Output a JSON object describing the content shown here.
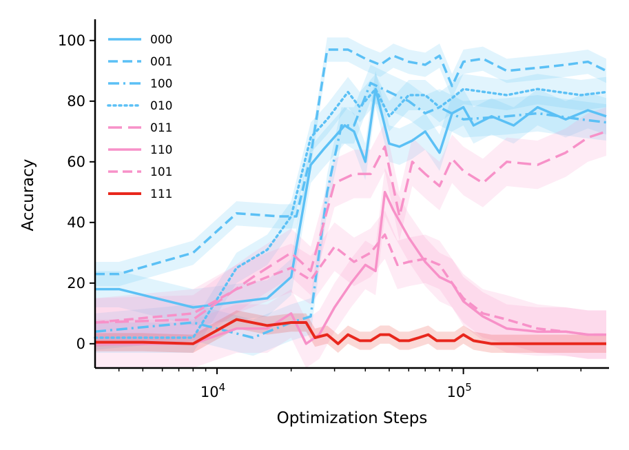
{
  "chart_data": {
    "type": "line",
    "xlabel": "Optimization Steps",
    "ylabel": "Accuracy",
    "x_scale": "log",
    "xlim": [
      3200,
      390000
    ],
    "ylim": [
      -8,
      107
    ],
    "x_ticks": [
      {
        "value": 10000,
        "base": "10",
        "exp": "4"
      },
      {
        "value": 100000,
        "base": "10",
        "exp": "5"
      }
    ],
    "y_ticks": [
      0,
      20,
      40,
      60,
      80,
      100
    ],
    "grid": false,
    "legend_position": "top-left",
    "colors": {
      "blue": "#5bc0f5",
      "pink": "#f791c8",
      "red": "#e8271c"
    },
    "series": [
      {
        "name": "000",
        "color": "#5bc0f5",
        "dash": "solid",
        "x": [
          3200,
          4000,
          8000,
          16000,
          20000,
          24000,
          27000,
          33000,
          36000,
          40000,
          44000,
          50000,
          55000,
          62000,
          70000,
          80000,
          90000,
          100000,
          110000,
          130000,
          160000,
          200000,
          260000,
          320000,
          380000
        ],
        "y": [
          18,
          18,
          12,
          15,
          22,
          59,
          64,
          72,
          70,
          60,
          84,
          66,
          65,
          67,
          70,
          63,
          76,
          78,
          72,
          75,
          72,
          78,
          74,
          77,
          75
        ],
        "band": 6
      },
      {
        "name": "001",
        "color": "#5bc0f5",
        "dash": "dashed",
        "x": [
          3200,
          4000,
          8000,
          12000,
          18000,
          21000,
          24000,
          28000,
          34000,
          40000,
          46000,
          52000,
          60000,
          70000,
          80000,
          90000,
          100000,
          120000,
          150000,
          200000,
          260000,
          320000,
          380000
        ],
        "y": [
          23,
          23,
          30,
          43,
          42,
          42,
          62,
          97,
          97,
          94,
          92,
          95,
          93,
          92,
          95,
          85,
          93,
          94,
          90,
          91,
          92,
          93,
          90
        ],
        "band": 4
      },
      {
        "name": "100",
        "color": "#5bc0f5",
        "dash": "dashdot",
        "x": [
          3200,
          8000,
          14000,
          20000,
          24000,
          28000,
          32000,
          36000,
          42000,
          50000,
          60000,
          70000,
          80000,
          100000,
          150000,
          200000,
          300000,
          380000
        ],
        "y": [
          4,
          7,
          2,
          7,
          9,
          50,
          72,
          72,
          86,
          83,
          80,
          76,
          78,
          74,
          75,
          76,
          74,
          73
        ],
        "band": 6
      },
      {
        "name": "010",
        "color": "#5bc0f5",
        "dash": "dotted",
        "x": [
          3200,
          8000,
          12000,
          16000,
          20000,
          24000,
          28000,
          34000,
          38000,
          44000,
          50000,
          60000,
          70000,
          80000,
          90000,
          100000,
          150000,
          200000,
          300000,
          380000
        ],
        "y": [
          2,
          2,
          25,
          31,
          42,
          68,
          74,
          83,
          78,
          84,
          75,
          82,
          82,
          78,
          81,
          84,
          82,
          84,
          82,
          83
        ],
        "band": 5
      },
      {
        "name": "011",
        "color": "#f791c8",
        "dash": "longdash",
        "x": [
          3200,
          8000,
          14000,
          20000,
          24000,
          30000,
          36000,
          42000,
          48000,
          55000,
          62000,
          70000,
          80000,
          90000,
          100000,
          120000,
          150000,
          200000,
          260000,
          320000,
          380000
        ],
        "y": [
          7,
          8,
          22,
          30,
          24,
          53,
          56,
          56,
          65,
          42,
          60,
          56,
          52,
          61,
          57,
          53,
          60,
          59,
          63,
          68,
          70
        ],
        "band": 8
      },
      {
        "name": "110",
        "color": "#f791c8",
        "dash": "solid",
        "x": [
          3200,
          8000,
          12000,
          16000,
          20000,
          23000,
          26000,
          30000,
          35000,
          40000,
          44000,
          48000,
          52000,
          60000,
          70000,
          80000,
          90000,
          100000,
          120000,
          150000,
          200000,
          260000,
          320000,
          380000
        ],
        "y": [
          0,
          0,
          5,
          5,
          10,
          0,
          3,
          12,
          20,
          26,
          24,
          50,
          44,
          35,
          27,
          22,
          20,
          14,
          9,
          5,
          4,
          4,
          3,
          3
        ],
        "band": 8
      },
      {
        "name": "101",
        "color": "#f791c8",
        "dash": "dashed",
        "x": [
          3200,
          8000,
          12000,
          16000,
          20000,
          24000,
          30000,
          36000,
          42000,
          48000,
          54000,
          60000,
          70000,
          80000,
          90000,
          100000,
          120000,
          150000,
          200000,
          260000,
          320000,
          380000
        ],
        "y": [
          7,
          10,
          18,
          22,
          25,
          21,
          32,
          27,
          30,
          36,
          26,
          27,
          28,
          26,
          20,
          15,
          10,
          8,
          5,
          4,
          3,
          3
        ],
        "band": 8
      },
      {
        "name": "111",
        "color": "#e8271c",
        "dash": "solid",
        "x": [
          3200,
          5000,
          8000,
          12000,
          16000,
          20000,
          23000,
          25000,
          28000,
          31000,
          34000,
          38000,
          42000,
          46000,
          50000,
          55000,
          60000,
          66000,
          72000,
          78000,
          84000,
          92000,
          100000,
          110000,
          130000,
          200000,
          380000
        ],
        "y": [
          0.5,
          0.5,
          0,
          8,
          6,
          7,
          7,
          2,
          3,
          0,
          3,
          1,
          1,
          3,
          3,
          1,
          1,
          2,
          3,
          1,
          1,
          1,
          3,
          1,
          0,
          0,
          0
        ],
        "band": 3
      }
    ]
  }
}
